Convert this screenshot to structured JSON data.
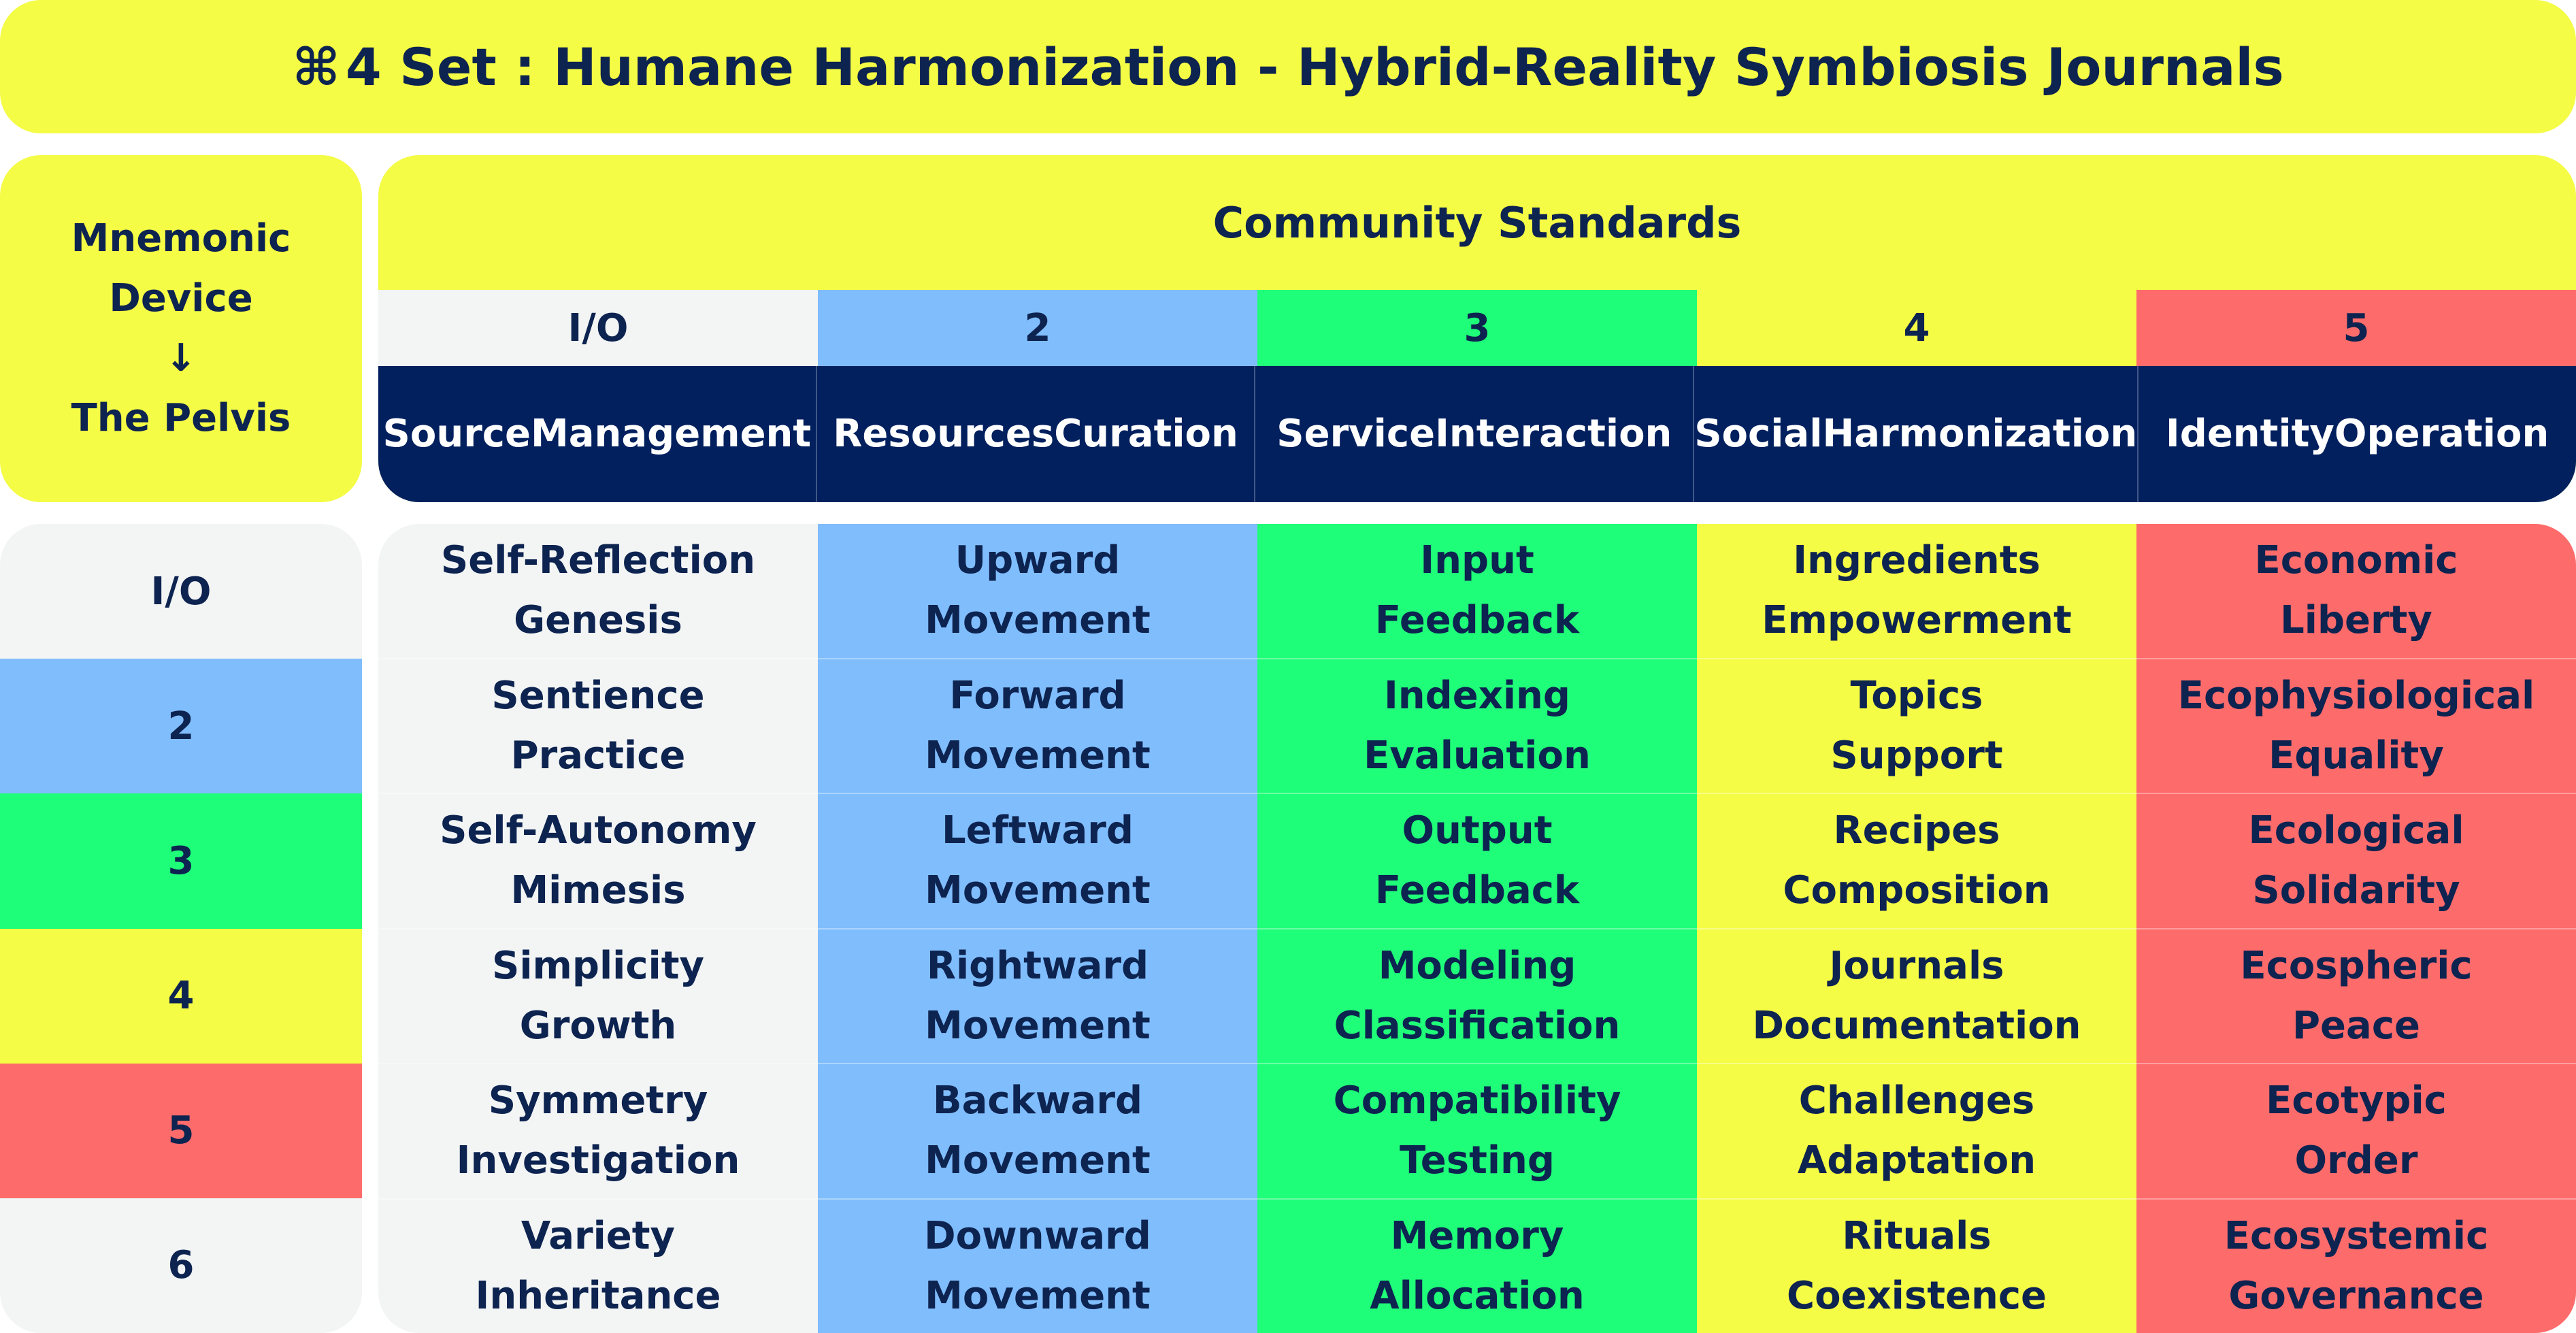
{
  "title": {
    "glyph": "⌘",
    "text": "4 Set : Humane Harmonization - Hybrid-Reality Symbiosis Journals"
  },
  "mnemonic": {
    "line1": "Mnemonic",
    "line2": "Device",
    "arrow": "↓",
    "line3": "The Pelvis"
  },
  "header": {
    "title": "Community Standards",
    "numbers": [
      "I/O",
      "2",
      "3",
      "4",
      "5"
    ],
    "names": [
      [
        "Source",
        "Management"
      ],
      [
        "Resources",
        "Curation"
      ],
      [
        "Service",
        "Interaction"
      ],
      [
        "Social",
        "Harmonization"
      ],
      [
        "Identity",
        "Operation"
      ]
    ]
  },
  "rows": [
    "I/O",
    "2",
    "3",
    "4",
    "5",
    "6"
  ],
  "columns": [
    [
      [
        "Self-Reflection",
        "Genesis"
      ],
      [
        "Sentience",
        "Practice"
      ],
      [
        "Self-Autonomy",
        "Mimesis"
      ],
      [
        "Simplicity",
        "Growth"
      ],
      [
        "Symmetry",
        "Investigation"
      ],
      [
        "Variety",
        "Inheritance"
      ]
    ],
    [
      [
        "Upward",
        "Movement"
      ],
      [
        "Forward",
        "Movement"
      ],
      [
        "Leftward",
        "Movement"
      ],
      [
        "Rightward",
        "Movement"
      ],
      [
        "Backward",
        "Movement"
      ],
      [
        "Downward",
        "Movement"
      ]
    ],
    [
      [
        "Input",
        "Feedback"
      ],
      [
        "Indexing",
        "Evaluation"
      ],
      [
        "Output",
        "Feedback"
      ],
      [
        "Modeling",
        "Classification"
      ],
      [
        "Compatibility",
        "Testing"
      ],
      [
        "Memory",
        "Allocation"
      ]
    ],
    [
      [
        "Ingredients",
        "Empowerment"
      ],
      [
        "Topics",
        "Support"
      ],
      [
        "Recipes",
        "Composition"
      ],
      [
        "Journals",
        "Documentation"
      ],
      [
        "Challenges",
        "Adaptation"
      ],
      [
        "Rituals",
        "Coexistence"
      ]
    ],
    [
      [
        "Economic",
        "Liberty"
      ],
      [
        "Ecophysiological",
        "Equality"
      ],
      [
        "Ecological",
        "Solidarity"
      ],
      [
        "Ecospheric",
        "Peace"
      ],
      [
        "Ecotypic",
        "Order"
      ],
      [
        "Ecosystemic",
        "Governance"
      ]
    ]
  ],
  "colors": {
    "yellow": "#f4fc45",
    "navy": "#02205e",
    "io": "#f3f5f5",
    "blue": "#80bdfc",
    "green": "#1ffe78",
    "red": "#fe6b6b",
    "text": "#0d2350"
  }
}
